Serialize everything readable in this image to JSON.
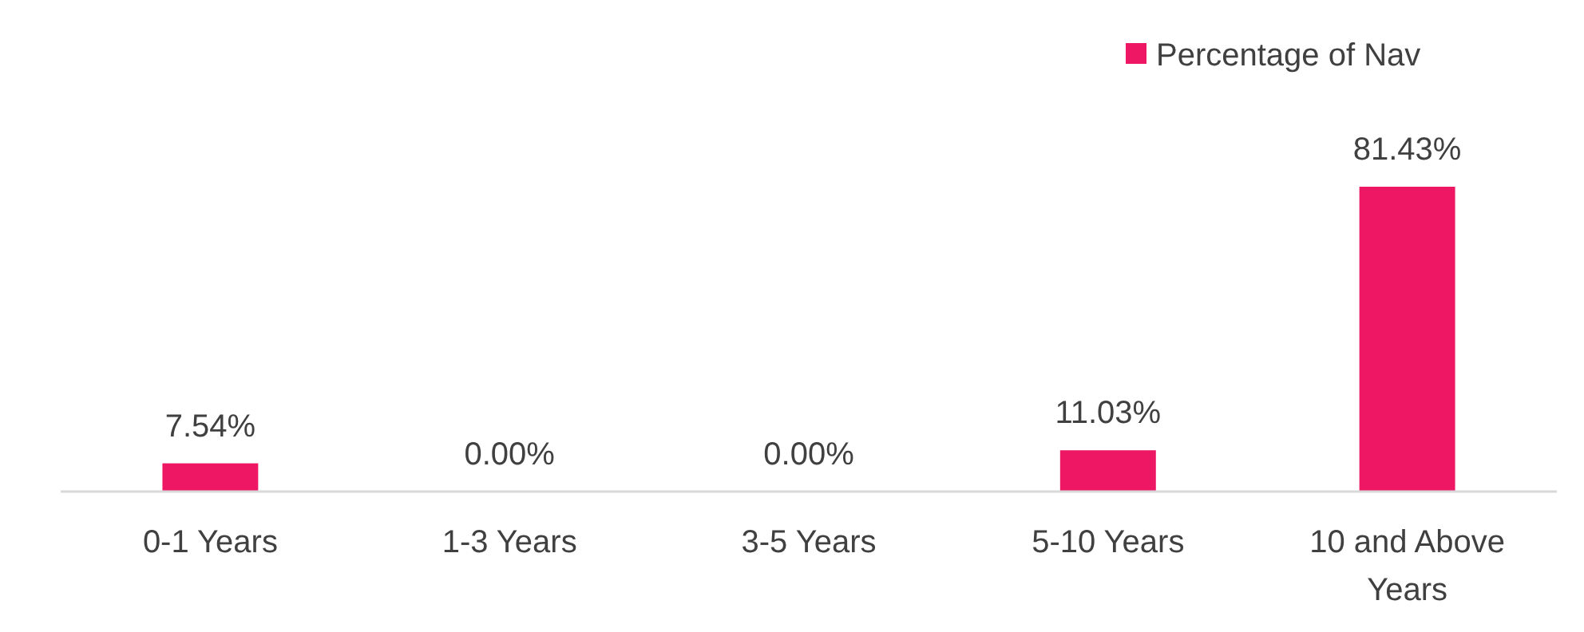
{
  "chart_data": {
    "type": "bar",
    "categories": [
      "0-1 Years",
      "1-3 Years",
      "3-5 Years",
      "5-10 Years",
      "10 and Above Years"
    ],
    "series": [
      {
        "name": "Percentage of Nav",
        "color": "#ed1763",
        "values": [
          7.54,
          0,
          0,
          11.03,
          81.43
        ],
        "value_labels": [
          "7.54%",
          "0.00%",
          "0.00%",
          "11.03%",
          "81.43%"
        ]
      }
    ],
    "legend": "top right"
  }
}
